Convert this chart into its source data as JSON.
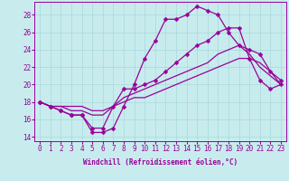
{
  "xlabel": "Windchill (Refroidissement éolien,°C)",
  "background_color": "#c8ecee",
  "grid_color": "#a8d8da",
  "line_color": "#990099",
  "xlim": [
    -0.5,
    23.5
  ],
  "ylim": [
    13.5,
    29.5
  ],
  "yticks": [
    14,
    16,
    18,
    20,
    22,
    24,
    26,
    28
  ],
  "xticks": [
    0,
    1,
    2,
    3,
    4,
    5,
    6,
    7,
    8,
    9,
    10,
    11,
    12,
    13,
    14,
    15,
    16,
    17,
    18,
    19,
    20,
    21,
    22,
    23
  ],
  "series": [
    [
      18.0,
      17.5,
      17.0,
      16.5,
      16.5,
      14.5,
      14.5,
      15.0,
      17.5,
      20.0,
      23.0,
      25.0,
      27.5,
      27.5,
      28.0,
      29.0,
      28.5,
      28.0,
      26.0,
      24.5,
      24.0,
      23.5,
      21.5,
      20.5
    ],
    [
      18.0,
      17.5,
      17.0,
      16.5,
      16.5,
      15.0,
      15.0,
      17.5,
      19.5,
      19.5,
      20.0,
      20.5,
      21.5,
      22.5,
      23.5,
      24.5,
      25.0,
      26.0,
      26.5,
      26.5,
      23.0,
      20.5,
      19.5,
      20.0
    ],
    [
      18.0,
      17.5,
      17.5,
      17.0,
      17.0,
      16.5,
      16.5,
      17.5,
      18.5,
      19.0,
      19.5,
      20.0,
      20.5,
      21.0,
      21.5,
      22.0,
      22.5,
      23.5,
      24.0,
      24.5,
      23.5,
      22.0,
      21.0,
      20.0
    ],
    [
      18.0,
      17.5,
      17.5,
      17.5,
      17.5,
      17.0,
      17.0,
      17.5,
      18.0,
      18.5,
      18.5,
      19.0,
      19.5,
      20.0,
      20.5,
      21.0,
      21.5,
      22.0,
      22.5,
      23.0,
      23.0,
      22.5,
      21.5,
      20.0
    ]
  ],
  "markers": [
    true,
    true,
    false,
    false
  ],
  "markersize": 2.5,
  "linewidth": 0.9,
  "tick_fontsize": 5.5,
  "xlabel_fontsize": 5.5
}
